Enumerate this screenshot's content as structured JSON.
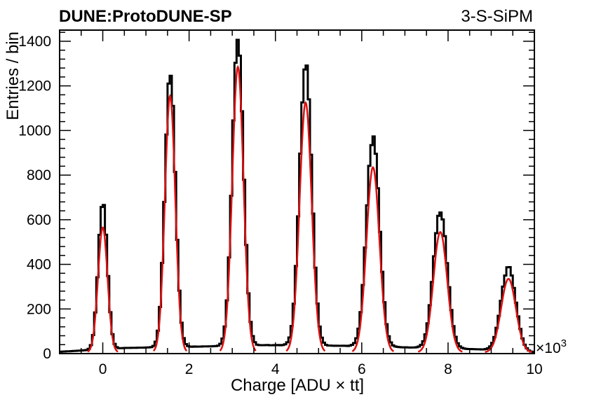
{
  "header": {
    "experiment": "DUNE:ProtoDUNE-SP",
    "detector": "3-S-SiPM"
  },
  "chart_data": {
    "type": "line",
    "title": "",
    "xlabel": "Charge [ADU × tt]",
    "ylabel": "Entries / bin",
    "x_multiplier_label": "×10",
    "x_multiplier_exp": "3",
    "xlim": [
      -1,
      10
    ],
    "ylim": [
      0,
      1450
    ],
    "x_ticks": [
      0,
      2,
      4,
      6,
      8,
      10
    ],
    "y_ticks": [
      0,
      200,
      400,
      600,
      800,
      1000,
      1200,
      1400
    ],
    "grid": false,
    "colors": {
      "histogram": "#000000",
      "fit": "#dd1111"
    },
    "series": [
      {
        "kind": "histogram",
        "peaks": [
          {
            "mean": 0.0,
            "height": 660,
            "sigma": 0.105
          },
          {
            "mean": 1.56,
            "height": 1240,
            "sigma": 0.12
          },
          {
            "mean": 3.13,
            "height": 1390,
            "sigma": 0.13
          },
          {
            "mean": 4.7,
            "height": 1275,
            "sigma": 0.14
          },
          {
            "mean": 6.26,
            "height": 940,
            "sigma": 0.15
          },
          {
            "mean": 7.82,
            "height": 615,
            "sigma": 0.16
          },
          {
            "mean": 9.4,
            "height": 375,
            "sigma": 0.17
          }
        ],
        "baseline": [
          {
            "x": -1.0,
            "y": 8
          },
          {
            "x": 0.5,
            "y": 25
          },
          {
            "x": 2.3,
            "y": 32
          },
          {
            "x": 3.9,
            "y": 38
          },
          {
            "x": 5.5,
            "y": 35
          },
          {
            "x": 7.0,
            "y": 28
          },
          {
            "x": 8.6,
            "y": 20
          },
          {
            "x": 10.0,
            "y": 5
          }
        ]
      },
      {
        "kind": "fit",
        "peaks": [
          {
            "mean": 0.0,
            "height": 560,
            "sigma": 0.11
          },
          {
            "mean": 1.56,
            "height": 1150,
            "sigma": 0.12
          },
          {
            "mean": 3.13,
            "height": 1280,
            "sigma": 0.13
          },
          {
            "mean": 4.7,
            "height": 1120,
            "sigma": 0.14
          },
          {
            "mean": 6.26,
            "height": 830,
            "sigma": 0.15
          },
          {
            "mean": 7.82,
            "height": 540,
            "sigma": 0.16
          },
          {
            "mean": 9.4,
            "height": 330,
            "sigma": 0.17
          }
        ]
      }
    ]
  }
}
